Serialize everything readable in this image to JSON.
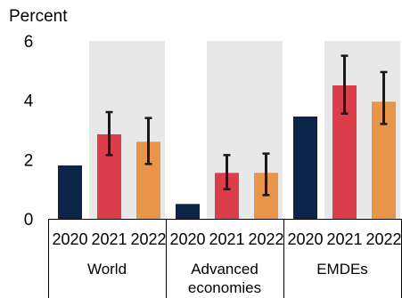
{
  "chart_data": {
    "type": "bar",
    "unit_label": "Percent",
    "ylim": [
      0,
      6
    ],
    "yticks": [
      "0",
      "2",
      "4",
      "6"
    ],
    "groups": [
      {
        "name": "World",
        "label_lines": [
          "World"
        ],
        "bars": [
          {
            "year": "2020",
            "value": 1.8
          },
          {
            "year": "2021",
            "value": 2.85,
            "err_low": 2.15,
            "err_high": 3.6
          },
          {
            "year": "2022",
            "value": 2.6,
            "err_low": 1.85,
            "err_high": 3.4
          }
        ]
      },
      {
        "name": "Advanced economies",
        "label_lines": [
          "Advanced",
          "economies"
        ],
        "bars": [
          {
            "year": "2020",
            "value": 0.5
          },
          {
            "year": "2021",
            "value": 1.55,
            "err_low": 1.0,
            "err_high": 2.15
          },
          {
            "year": "2022",
            "value": 1.55,
            "err_low": 0.8,
            "err_high": 2.2
          }
        ]
      },
      {
        "name": "EMDEs",
        "label_lines": [
          "EMDEs"
        ],
        "bars": [
          {
            "year": "2020",
            "value": 3.45
          },
          {
            "year": "2021",
            "value": 4.5,
            "err_low": 3.55,
            "err_high": 5.5
          },
          {
            "year": "2022",
            "value": 3.95,
            "err_low": 3.2,
            "err_high": 4.95
          }
        ]
      }
    ],
    "shaded_years": [
      "2021",
      "2022"
    ],
    "colors": {
      "2020": "#0b2447",
      "2021": "#dc3d4b",
      "2022": "#e8954a",
      "shade": "#e8e8e8",
      "error_bar": "#1a1a1a"
    }
  }
}
